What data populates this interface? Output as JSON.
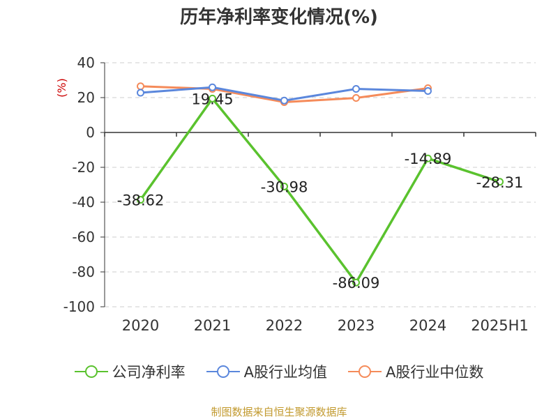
{
  "chart_data": {
    "type": "line",
    "title": "历年净利率变化情况(%)",
    "ylabel": "(%)",
    "categories": [
      "2020",
      "2021",
      "2022",
      "2023",
      "2024",
      "2025H1"
    ],
    "ylim": [
      -100,
      40
    ],
    "yticks": [
      40,
      20,
      0,
      -20,
      -40,
      -60,
      -80,
      -100
    ],
    "grid": true,
    "legend_position": "bottom",
    "series": [
      {
        "name": "公司净利率",
        "color": "#5ac22e",
        "values": [
          -38.62,
          19.45,
          -30.98,
          -86.09,
          -14.89,
          -28.31
        ],
        "labels": [
          "-38.62",
          "19.45",
          "-30.98",
          "-86.09",
          "-14.89",
          "-28.31"
        ]
      },
      {
        "name": "A股行业均值",
        "color": "#5b87dc",
        "values": [
          22.8,
          25.9,
          18.3,
          25.0,
          23.8,
          null
        ]
      },
      {
        "name": "A股行业中位数",
        "color": "#f58b5a",
        "values": [
          26.5,
          25.0,
          17.4,
          19.8,
          25.4,
          null
        ]
      }
    ]
  },
  "source": "制图数据来自恒生聚源数据库"
}
